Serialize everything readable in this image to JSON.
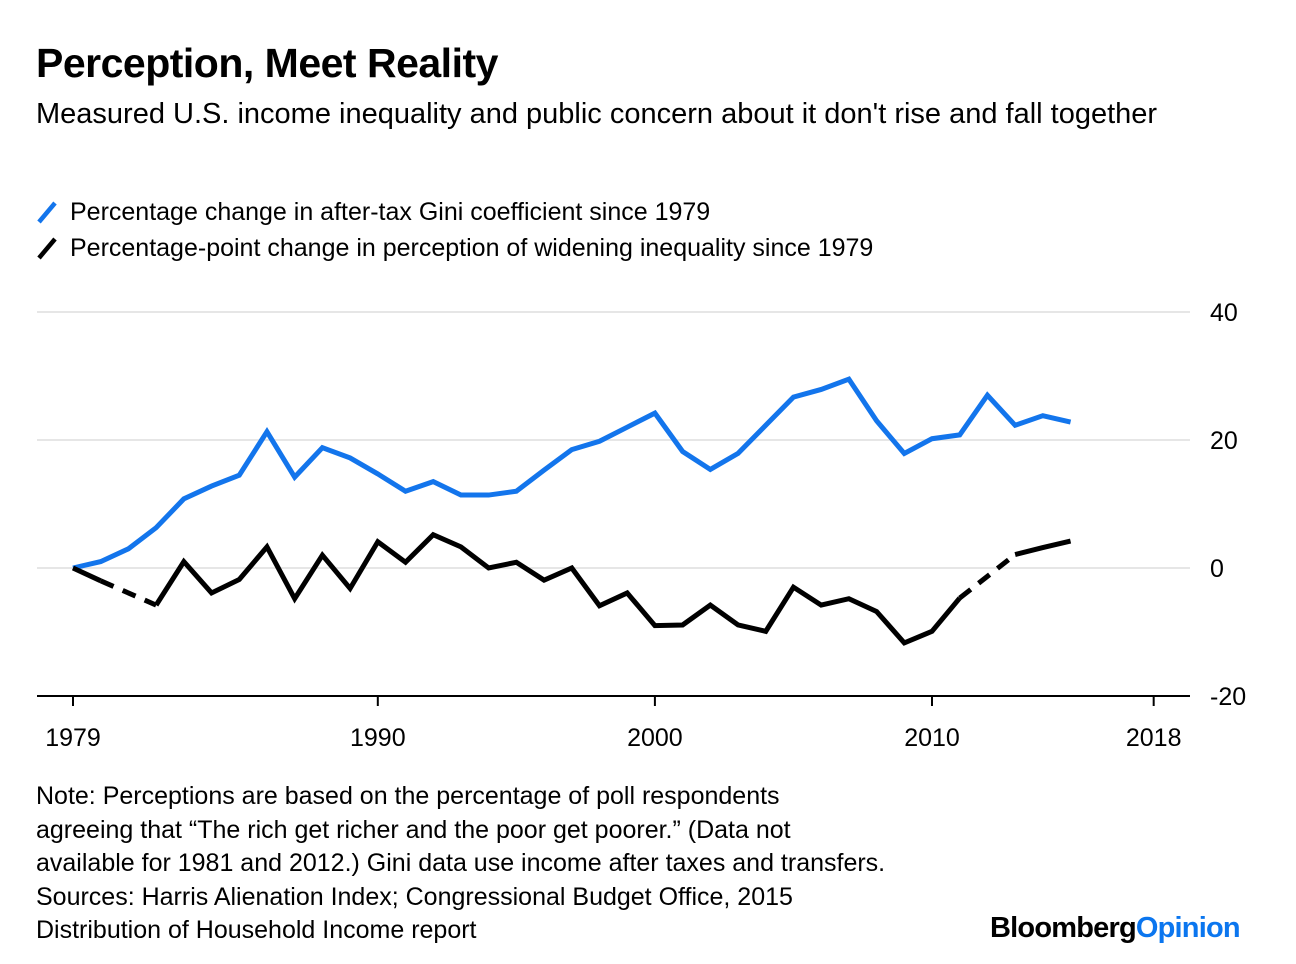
{
  "header": {
    "title": "Perception, Meet Reality",
    "subtitle": "Measured U.S. income inequality and public concern about it don't rise and fall together"
  },
  "colors": {
    "gini": "#1375ec",
    "perception": "#000000",
    "gridline": "#e6e6e6",
    "logo_accent": "#0b76ef"
  },
  "chart_data": {
    "type": "line",
    "title": "Perception, Meet Reality",
    "xlabel": "",
    "ylabel": "",
    "xlim": [
      1979,
      2018
    ],
    "ylim": [
      -20,
      40
    ],
    "grid": true,
    "legend_position": "top-left",
    "y_axis_side": "right",
    "x_ticks": [
      1979,
      1990,
      2000,
      2010,
      2018
    ],
    "x_tick_labels": [
      "1979",
      "1990",
      "2000",
      "2010",
      "2018"
    ],
    "y_ticks": [
      -20,
      0,
      20,
      40
    ],
    "y_tick_labels": [
      "-20",
      "0",
      "20",
      "40"
    ],
    "series": [
      {
        "name": "Percentage change in after-tax Gini coefficient since 1979",
        "color": "#1375ec",
        "x": [
          1979,
          1980,
          1981,
          1982,
          1983,
          1984,
          1985,
          1986,
          1987,
          1988,
          1989,
          1990,
          1991,
          1992,
          1993,
          1994,
          1995,
          1996,
          1997,
          1998,
          1999,
          2000,
          2001,
          2002,
          2003,
          2004,
          2005,
          2006,
          2007,
          2008,
          2009,
          2010,
          2011,
          2012,
          2013,
          2014,
          2015
        ],
        "values": [
          0,
          1,
          3,
          6.3,
          10.8,
          12.8,
          14.5,
          21.3,
          14.2,
          18.8,
          17.2,
          14.7,
          12,
          13.5,
          11.4,
          11.4,
          12,
          15.3,
          18.5,
          19.8,
          22,
          24.2,
          18.2,
          15.4,
          17.9,
          22.3,
          26.7,
          27.9,
          29.5,
          23,
          17.9,
          20.2,
          20.8,
          27,
          22.3,
          23.8,
          22.8
        ]
      },
      {
        "name": "Percentage-point change in perception of widening inequality since 1979",
        "color": "#000000",
        "x": [
          1979,
          1980,
          1981,
          1982,
          1983,
          1984,
          1985,
          1986,
          1987,
          1988,
          1989,
          1990,
          1991,
          1992,
          1993,
          1994,
          1995,
          1996,
          1997,
          1998,
          1999,
          2000,
          2001,
          2002,
          2003,
          2004,
          2005,
          2006,
          2007,
          2008,
          2009,
          2010,
          2011,
          2012,
          2013,
          2014,
          2015
        ],
        "values": [
          0,
          -2,
          null,
          -5.8,
          1,
          -3.9,
          -1.8,
          3.3,
          -4.8,
          2,
          -3.2,
          4.1,
          0.9,
          5.2,
          3.3,
          0,
          0.9,
          -1.9,
          0,
          -5.9,
          -3.9,
          -9,
          -8.9,
          -5.8,
          -8.9,
          -9.9,
          -3,
          -5.8,
          -4.8,
          -6.8,
          -11.7,
          -9.9,
          -4.7,
          null,
          2.1,
          3.2,
          4.2
        ],
        "missing_note": "Dashed segments bridge missing years 1981 and 2012"
      }
    ]
  },
  "legend": [
    {
      "label": "Percentage change in after-tax Gini coefficient since 1979",
      "color": "#1375ec",
      "icon": "slash-line-icon"
    },
    {
      "label": "Percentage-point change in perception of widening inequality since 1979",
      "color": "#000000",
      "icon": "slash-line-icon"
    }
  ],
  "footer": {
    "note_lines": [
      "Note: Perceptions are based on the percentage of poll respondents",
      "agreeing that “The rich get richer and the poor get poorer.” (Data not",
      "available for 1981 and 2012.) Gini data use income after taxes and transfers.",
      "Sources: Harris Alienation Index; Congressional Budget Office, 2015",
      "Distribution of Household Income report"
    ],
    "logo_part1": "Bloomberg",
    "logo_part2": "Opinion"
  }
}
